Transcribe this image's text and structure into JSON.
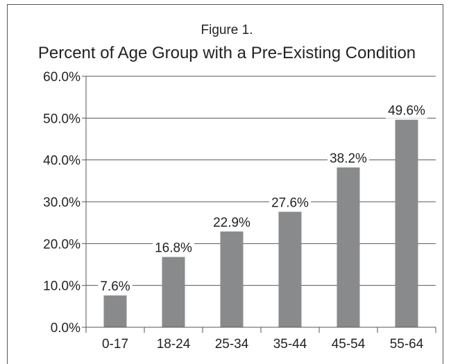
{
  "chart_data": {
    "type": "bar",
    "figure_label": "Figure 1.",
    "title": "Percent of Age Group with a Pre-Existing Condition",
    "xlabel": "",
    "ylabel": "",
    "categories": [
      "0-17",
      "18-24",
      "25-34",
      "35-44",
      "45-54",
      "55-64"
    ],
    "values": [
      7.6,
      16.8,
      22.9,
      27.6,
      38.2,
      49.6
    ],
    "value_labels": [
      "7.6%",
      "16.8%",
      "22.9%",
      "27.6%",
      "38.2%",
      "49.6%"
    ],
    "ylim": [
      0,
      60
    ],
    "yticks": [
      0,
      10,
      20,
      30,
      40,
      50,
      60
    ],
    "ytick_labels": [
      "0.0%",
      "10.0%",
      "20.0%",
      "30.0%",
      "40.0%",
      "50.0%",
      "60.0%"
    ],
    "grid": "horizontal",
    "legend": "none",
    "bar_color": "#898a8c",
    "axis_color": "#555555"
  }
}
